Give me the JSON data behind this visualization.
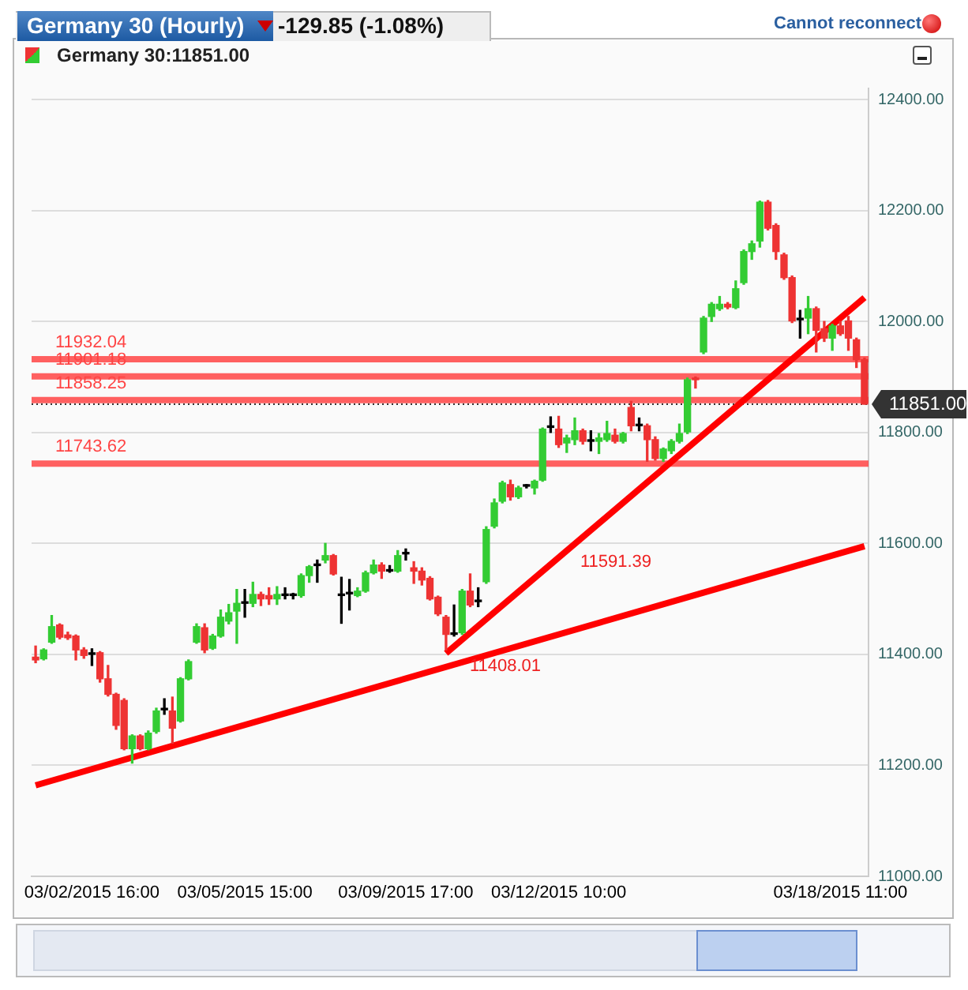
{
  "chart_data": {
    "type": "candlestick",
    "title": "Germany 30 (Hourly)",
    "subtitle": "-129.85 (-1.08%)",
    "annotations": [
      "Germany 30:11851.00",
      "Cannot reconnect",
      "11591.39",
      "11408.01"
    ],
    "categories": [
      null,
      null,
      null,
      null,
      null,
      null,
      null,
      "03/02/2015 16:00",
      null,
      null,
      null,
      null,
      null,
      null,
      null,
      null,
      null,
      null,
      null,
      null,
      null,
      null,
      null,
      null,
      null,
      null,
      "03/05/2015 15:00",
      null,
      null,
      null,
      null,
      null,
      null,
      null,
      null,
      null,
      null,
      null,
      null,
      null,
      null,
      null,
      null,
      null,
      null,
      null,
      "03/09/2015 17:00",
      null,
      null,
      null,
      null,
      null,
      null,
      null,
      null,
      null,
      null,
      null,
      null,
      null,
      null,
      null,
      null,
      null,
      null,
      "03/12/2015 10:00",
      null,
      null,
      null,
      null,
      null,
      null,
      null,
      null,
      null,
      null,
      null,
      null,
      null,
      null,
      null,
      null,
      null,
      null,
      null,
      null,
      null,
      null,
      null,
      null,
      null,
      null,
      null,
      null,
      null,
      null,
      null,
      null,
      null,
      null,
      "03/18/2015 11:00",
      null,
      null,
      null
    ],
    "ohlc": [
      [
        11395,
        11415,
        11385,
        11390
      ],
      [
        11392,
        11410,
        11390,
        11408
      ],
      [
        11422,
        11470,
        11420,
        11450
      ],
      [
        11453,
        11455,
        11428,
        11431
      ],
      [
        11435,
        11440,
        11427,
        11430
      ],
      [
        11433,
        11435,
        11390,
        11408
      ],
      [
        11408,
        11412,
        11393,
        11398
      ],
      [
        11400,
        11410,
        11380,
        11400
      ],
      [
        11403,
        11405,
        11350,
        11356
      ],
      [
        11356,
        11380,
        11325,
        11328
      ],
      [
        11328,
        11330,
        11265,
        11272
      ],
      [
        11317,
        11320,
        11228,
        11230
      ],
      [
        11230,
        11255,
        11204,
        11253
      ],
      [
        11253,
        11255,
        11228,
        11230
      ],
      [
        11230,
        11262,
        11228,
        11258
      ],
      [
        11261,
        11303,
        11258,
        11298
      ],
      [
        11300,
        11320,
        11292,
        11300
      ],
      [
        11298,
        11323,
        11240,
        11267
      ],
      [
        11280,
        11358,
        11278,
        11356
      ],
      [
        11356,
        11390,
        11354,
        11387
      ],
      [
        11422,
        11455,
        11420,
        11450
      ],
      [
        11448,
        11455,
        11403,
        11408
      ],
      [
        11411,
        11436,
        11409,
        11433
      ],
      [
        11433,
        11480,
        11431,
        11467
      ],
      [
        11460,
        11490,
        11455,
        11475
      ],
      [
        11478,
        11517,
        11420,
        11492
      ],
      [
        11492,
        11517,
        11467,
        11492
      ],
      [
        11492,
        11530,
        11486,
        11508
      ],
      [
        11508,
        11512,
        11488,
        11500
      ],
      [
        11506,
        11520,
        11490,
        11500
      ],
      [
        11500,
        11522,
        11490,
        11508
      ],
      [
        11506,
        11520,
        11500,
        11506
      ],
      [
        11506,
        11510,
        11500,
        11506
      ],
      [
        11506,
        11545,
        11503,
        11542
      ],
      [
        11542,
        11560,
        11530,
        11558
      ],
      [
        11560,
        11570,
        11530,
        11560
      ],
      [
        11570,
        11600,
        11565,
        11578
      ],
      [
        11578,
        11580,
        11543,
        11545
      ],
      [
        11506,
        11539,
        11456,
        11506
      ],
      [
        11509,
        11535,
        11480,
        11509
      ],
      [
        11506,
        11520,
        11504,
        11514
      ],
      [
        11514,
        11550,
        11512,
        11547
      ],
      [
        11547,
        11570,
        11545,
        11561
      ],
      [
        11561,
        11565,
        11537,
        11550
      ],
      [
        11550,
        11560,
        11548,
        11550
      ],
      [
        11550,
        11587,
        11548,
        11578
      ],
      [
        11581,
        11590,
        11570,
        11581
      ],
      [
        11556,
        11567,
        11528,
        11550
      ],
      [
        11550,
        11556,
        11525,
        11534
      ],
      [
        11537,
        11540,
        11498,
        11500
      ],
      [
        11503,
        11505,
        11470,
        11473
      ],
      [
        11467,
        11470,
        11408,
        11436
      ],
      [
        11436,
        11489,
        11433,
        11436
      ],
      [
        11439,
        11517,
        11436,
        11514
      ],
      [
        11514,
        11545,
        11486,
        11489
      ],
      [
        11495,
        11520,
        11486,
        11495
      ],
      [
        11531,
        11630,
        11528,
        11625
      ],
      [
        11631,
        11680,
        11628,
        11673
      ],
      [
        11676,
        11712,
        11673,
        11709
      ],
      [
        11706,
        11714,
        11678,
        11684
      ],
      [
        11684,
        11703,
        11681,
        11700
      ],
      [
        11703,
        11706,
        11700,
        11703
      ],
      [
        11700,
        11714,
        11689,
        11712
      ],
      [
        11714,
        11808,
        11712,
        11806
      ],
      [
        11809,
        11828,
        11800,
        11809
      ],
      [
        11806,
        11829,
        11773,
        11778
      ],
      [
        11781,
        11795,
        11764,
        11790
      ],
      [
        11787,
        11826,
        11778,
        11803
      ],
      [
        11803,
        11806,
        11779,
        11784
      ],
      [
        11784,
        11803,
        11767,
        11784
      ],
      [
        11784,
        11798,
        11762,
        11790
      ],
      [
        11787,
        11820,
        11784,
        11798
      ],
      [
        11795,
        11806,
        11781,
        11784
      ],
      [
        11784,
        11800,
        11781,
        11798
      ],
      [
        11845,
        11856,
        11803,
        11812
      ],
      [
        11812,
        11826,
        11803,
        11812
      ],
      [
        11812,
        11815,
        11748,
        11787
      ],
      [
        11787,
        11792,
        11750,
        11753
      ],
      [
        11753,
        11772,
        11748,
        11770
      ],
      [
        11767,
        11787,
        11762,
        11784
      ],
      [
        11784,
        11815,
        11781,
        11798
      ],
      [
        11801,
        11898,
        11798,
        11895
      ],
      [
        11898,
        11900,
        11880,
        11895
      ],
      [
        11945,
        12009,
        11942,
        12006
      ],
      [
        12009,
        12034,
        12000,
        12031
      ],
      [
        12023,
        12045,
        12020,
        12031
      ],
      [
        12031,
        12034,
        12023,
        12026
      ],
      [
        12025,
        12073,
        12023,
        12059
      ],
      [
        12070,
        12129,
        12067,
        12126
      ],
      [
        12126,
        12145,
        12112,
        12140
      ],
      [
        12145,
        12217,
        12134,
        12215
      ],
      [
        12215,
        12218,
        12165,
        12168
      ],
      [
        12173,
        12176,
        12112,
        12126
      ],
      [
        12120,
        12123,
        12076,
        12079
      ],
      [
        12079,
        12082,
        11998,
        12001
      ],
      [
        12003,
        12020,
        11970,
        12003
      ],
      [
        12006,
        12045,
        11978,
        12023
      ],
      [
        12023,
        12026,
        11945,
        11984
      ],
      [
        11987,
        12000,
        11964,
        11970
      ],
      [
        11970,
        11995,
        11948,
        11992
      ],
      [
        11992,
        12000,
        11975,
        11978
      ],
      [
        12001,
        12009,
        11948,
        11970
      ],
      [
        11967,
        11970,
        11917,
        11931
      ],
      [
        11931,
        11934,
        11851,
        11851
      ]
    ],
    "colors": [
      "#ee3333",
      "#33cc33",
      "#33cc33",
      "#ee3333",
      "#ee3333",
      "#ee3333",
      "#ee3333",
      "#000000",
      "#ee3333",
      "#ee3333",
      "#ee3333",
      "#ee3333",
      "#33cc33",
      "#ee3333",
      "#33cc33",
      "#33cc33",
      "#000000",
      "#ee3333",
      "#33cc33",
      "#33cc33",
      "#33cc33",
      "#ee3333",
      "#33cc33",
      "#33cc33",
      "#33cc33",
      "#33cc33",
      "#000000",
      "#33cc33",
      "#ee3333",
      "#ee3333",
      "#33cc33",
      "#000000",
      "#000000",
      "#33cc33",
      "#33cc33",
      "#000000",
      "#33cc33",
      "#ee3333",
      "#000000",
      "#000000",
      "#33cc33",
      "#33cc33",
      "#33cc33",
      "#ee3333",
      "#000000",
      "#33cc33",
      "#000000",
      "#ee3333",
      "#ee3333",
      "#ee3333",
      "#ee3333",
      "#ee3333",
      "#000000",
      "#33cc33",
      "#ee3333",
      "#000000",
      "#33cc33",
      "#33cc33",
      "#33cc33",
      "#ee3333",
      "#33cc33",
      "#000000",
      "#33cc33",
      "#33cc33",
      "#000000",
      "#ee3333",
      "#33cc33",
      "#33cc33",
      "#ee3333",
      "#000000",
      "#33cc33",
      "#33cc33",
      "#ee3333",
      "#33cc33",
      "#ee3333",
      "#000000",
      "#ee3333",
      "#ee3333",
      "#33cc33",
      "#33cc33",
      "#33cc33",
      "#33cc33",
      "#ee3333",
      "#33cc33",
      "#33cc33",
      "#33cc33",
      "#ee3333",
      "#33cc33",
      "#33cc33",
      "#33cc33",
      "#33cc33",
      "#ee3333",
      "#ee3333",
      "#ee3333",
      "#ee3333",
      "#000000",
      "#33cc33",
      "#ee3333",
      "#ee3333",
      "#33cc33",
      "#ee3333",
      "#ee3333",
      "#ee3333",
      "#ee3333"
    ],
    "series": [
      {
        "type": "line",
        "color": "#ff0000",
        "values": [
          11164,
          null,
          null,
          null,
          null,
          null,
          null,
          null,
          null,
          null,
          null,
          null,
          null,
          null,
          null,
          null,
          null,
          null,
          null,
          null,
          null,
          null,
          null,
          null,
          null,
          null,
          null,
          null,
          null,
          null,
          null,
          null,
          null,
          null,
          null,
          null,
          null,
          null,
          null,
          null,
          null,
          null,
          null,
          null,
          null,
          null,
          null,
          null,
          null,
          null,
          null,
          null,
          null,
          null,
          null,
          null,
          null,
          null,
          null,
          null,
          null,
          null,
          null,
          null,
          null,
          null,
          null,
          null,
          null,
          null,
          null,
          null,
          null,
          null,
          null,
          null,
          null,
          null,
          null,
          null,
          null,
          null,
          null,
          null,
          null,
          null,
          null,
          null,
          null,
          null,
          null,
          null,
          null,
          null,
          null,
          null,
          null,
          null,
          null,
          null,
          null,
          null,
          null,
          11595
        ]
      },
      {
        "type": "line",
        "color": "#ff0000",
        "values": [
          null,
          null,
          null,
          null,
          null,
          null,
          null,
          null,
          null,
          null,
          null,
          null,
          null,
          null,
          null,
          null,
          null,
          null,
          null,
          null,
          null,
          null,
          null,
          null,
          null,
          null,
          null,
          null,
          null,
          null,
          null,
          null,
          null,
          null,
          null,
          null,
          null,
          null,
          null,
          null,
          null,
          null,
          null,
          null,
          null,
          null,
          null,
          null,
          null,
          null,
          null,
          11402,
          null,
          null,
          null,
          null,
          null,
          null,
          null,
          null,
          null,
          null,
          null,
          null,
          null,
          null,
          null,
          null,
          null,
          null,
          null,
          null,
          null,
          null,
          null,
          null,
          null,
          null,
          null,
          null,
          null,
          null,
          null,
          null,
          null,
          null,
          null,
          null,
          null,
          null,
          null,
          null,
          null,
          null,
          null,
          null,
          null,
          null,
          null,
          null,
          null,
          null,
          null,
          12043
        ]
      }
    ],
    "ref_lines": [
      {
        "axis": "y",
        "value": 11932.04,
        "label": "11932.04",
        "color": "#ff4444"
      },
      {
        "axis": "y",
        "value": 11901.18,
        "label": "11901.18",
        "color": "#ff4444"
      },
      {
        "axis": "y",
        "value": 11858.25,
        "label": "11858.25",
        "color": "#ff4444"
      },
      {
        "axis": "y",
        "value": 11743.62,
        "label": "11743.62",
        "color": "#ff4444"
      },
      {
        "axis": "y",
        "value": 11851,
        "label": "11851.00",
        "color": "#333333",
        "line_style": "dotted"
      }
    ],
    "ylim": [
      11000,
      12420
    ],
    "yticks": [
      {
        "value": 11000,
        "label": "11000.00"
      },
      {
        "value": 11200,
        "label": "11200.00"
      },
      {
        "value": 11400,
        "label": "11400.00"
      },
      {
        "value": 11600,
        "label": "11600.00"
      },
      {
        "value": 11800,
        "label": "11800.00"
      },
      {
        "value": 12000,
        "label": "12000.00"
      },
      {
        "value": 12200,
        "label": "12200.00"
      },
      {
        "value": 12400,
        "label": "12400.00"
      }
    ],
    "grid": "y"
  }
}
